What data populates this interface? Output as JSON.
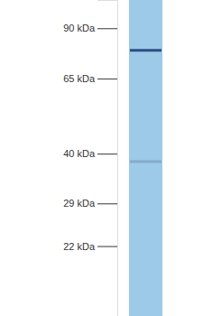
{
  "chart_data": {
    "type": "blot",
    "log": "y",
    "ylim": [
      108,
      14
    ],
    "yticks": [
      {
        "value": 90,
        "label": "90 kDa"
      },
      {
        "value": 65,
        "label": "65 kDa"
      },
      {
        "value": 40,
        "label": "40 kDa"
      },
      {
        "value": 29,
        "label": "29 kDa"
      },
      {
        "value": 22,
        "label": "22 kDa"
      }
    ],
    "values": [
      78,
      38
    ],
    "colors": [
      "#2b4f86",
      "#86abcb"
    ]
  }
}
